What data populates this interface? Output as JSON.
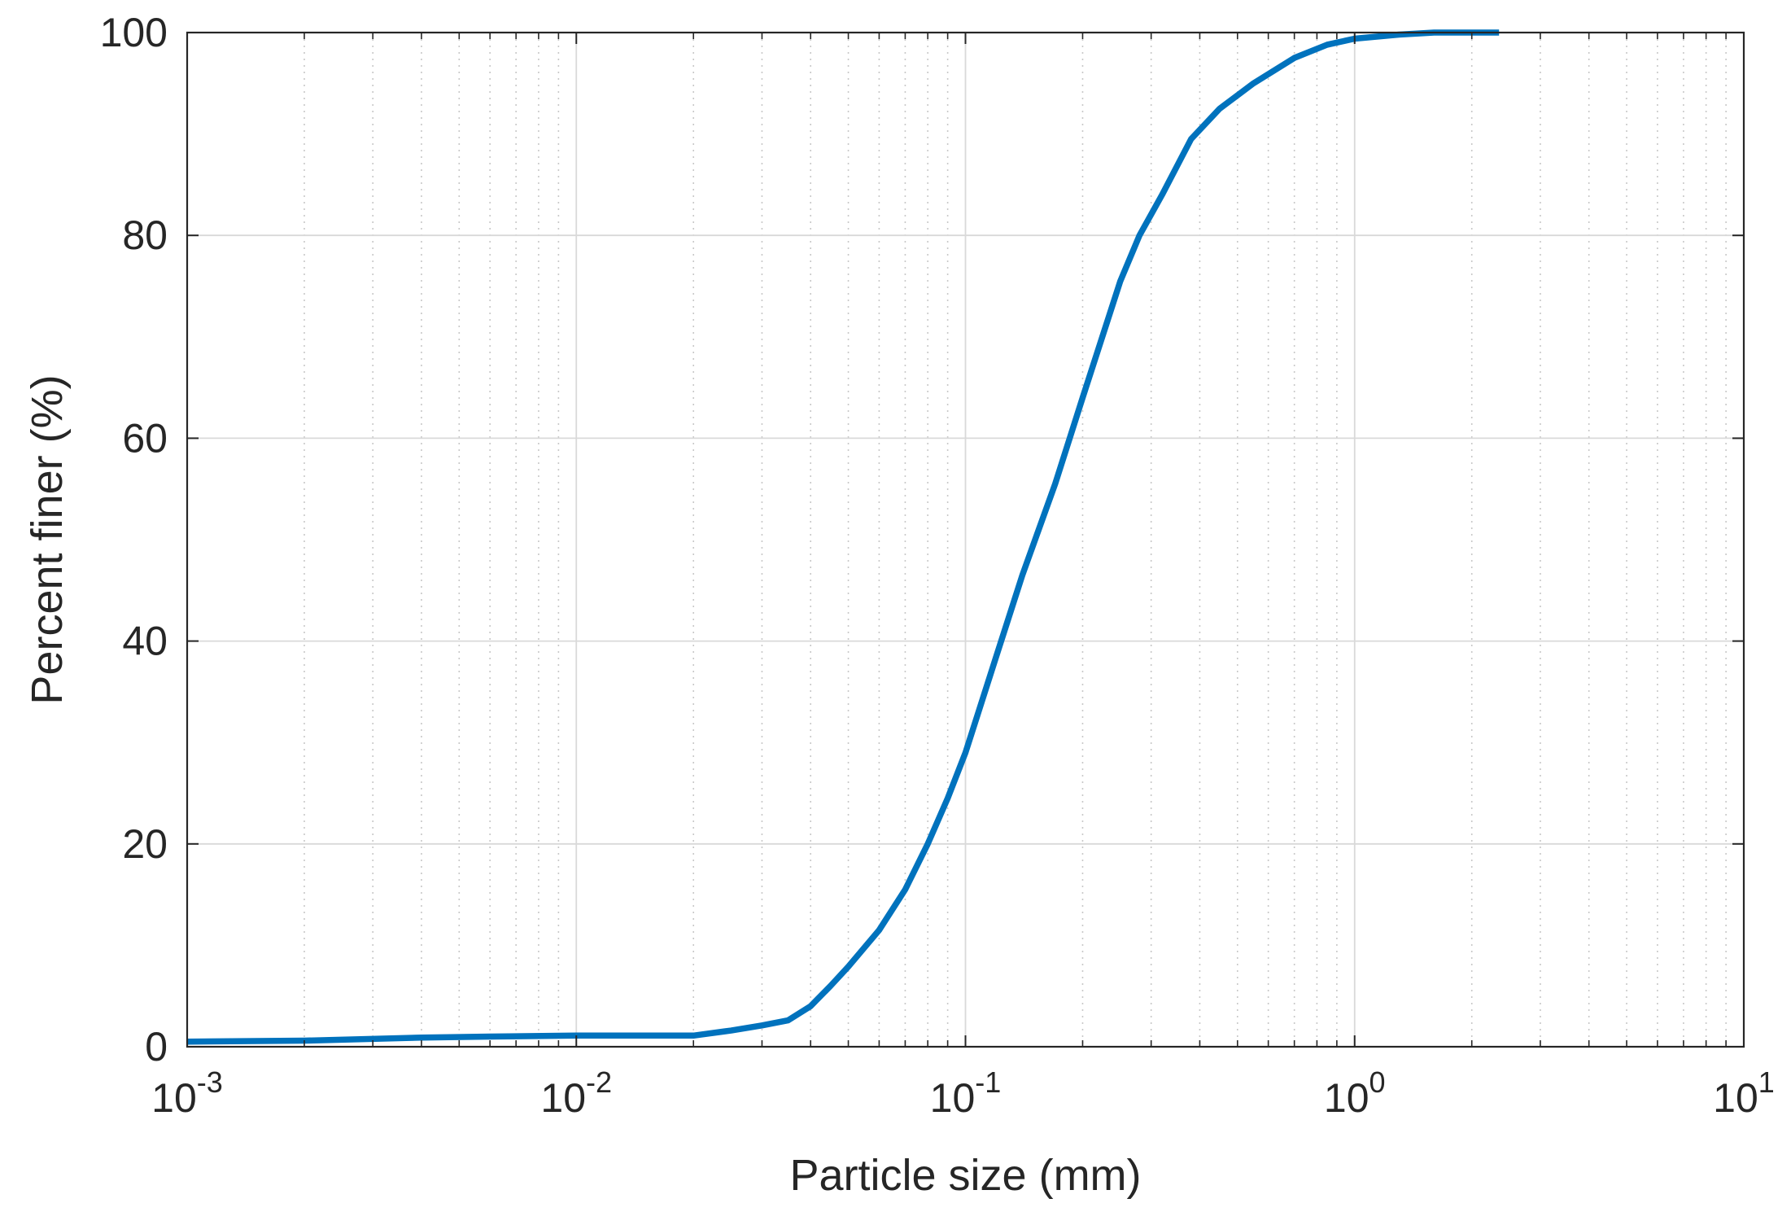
{
  "chart_data": {
    "type": "line",
    "title": "",
    "xlabel": "Particle size (mm)",
    "ylabel": "Percent finer (%)",
    "x_scale": "log",
    "xlim": [
      0.001,
      10
    ],
    "ylim": [
      0,
      100
    ],
    "grid": true,
    "minor_grid": true,
    "x_ticks": [
      {
        "value": 0.001,
        "base": "10",
        "exp": "-3"
      },
      {
        "value": 0.01,
        "base": "10",
        "exp": "-2"
      },
      {
        "value": 0.1,
        "base": "10",
        "exp": "-1"
      },
      {
        "value": 1,
        "base": "10",
        "exp": "0"
      },
      {
        "value": 10,
        "base": "10",
        "exp": "1"
      }
    ],
    "y_ticks": [
      {
        "value": 0,
        "label": "0"
      },
      {
        "value": 20,
        "label": "20"
      },
      {
        "value": 40,
        "label": "40"
      },
      {
        "value": 60,
        "label": "60"
      },
      {
        "value": 80,
        "label": "80"
      },
      {
        "value": 100,
        "label": "100"
      }
    ],
    "colors": {
      "line": "#0072BD",
      "axis": "#262626",
      "grid": "#d9d9d9"
    },
    "series": [
      {
        "x": [
          0.001,
          0.002,
          0.004,
          0.006,
          0.01,
          0.015,
          0.02,
          0.025,
          0.03,
          0.035,
          0.04,
          0.045,
          0.05,
          0.06,
          0.07,
          0.08,
          0.09,
          0.1,
          0.12,
          0.14,
          0.17,
          0.2,
          0.25,
          0.28,
          0.32,
          0.38,
          0.45,
          0.55,
          0.7,
          0.85,
          1.0,
          1.3,
          1.6,
          2.0,
          2.35
        ],
        "y": [
          0.5,
          0.6,
          0.9,
          1.0,
          1.1,
          1.1,
          1.1,
          1.6,
          2.1,
          2.6,
          4.0,
          6.0,
          7.9,
          11.5,
          15.5,
          20.0,
          24.5,
          29.0,
          38.5,
          46.5,
          55.5,
          64.0,
          75.5,
          80.0,
          84.0,
          89.5,
          92.5,
          95.0,
          97.5,
          98.8,
          99.4,
          99.8,
          100.0,
          100.0,
          100.0
        ]
      }
    ]
  }
}
